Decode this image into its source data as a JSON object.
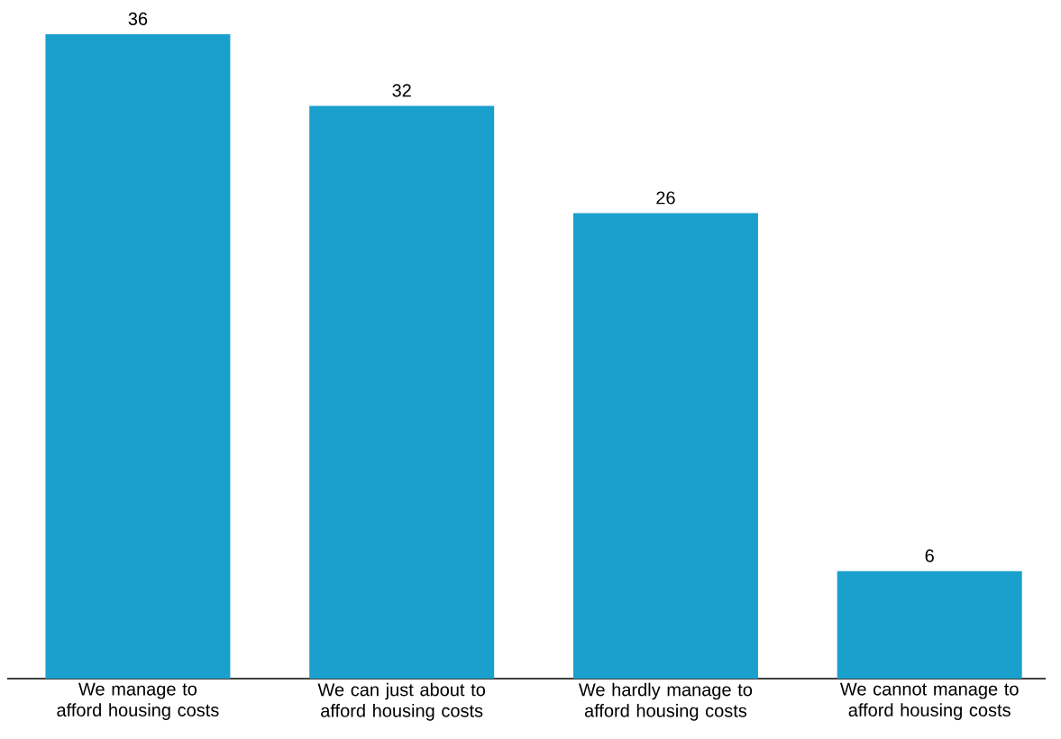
{
  "chart_data": {
    "type": "bar",
    "categories": [
      "We manage to afford housing costs",
      "We can just about to afford housing costs",
      "We hardly manage to afford housing costs",
      "We cannot manage to afford housing costs"
    ],
    "values": [
      36,
      32,
      26,
      6
    ],
    "color": "#1aa0cc",
    "data_labels": true
  }
}
